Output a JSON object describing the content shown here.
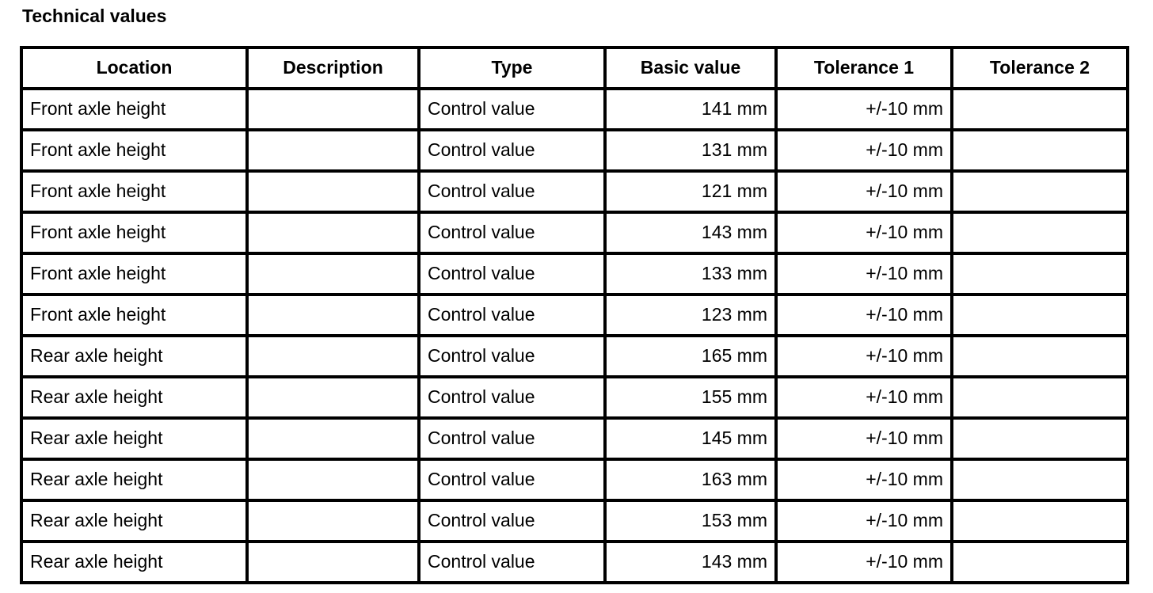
{
  "page": {
    "title": "Technical values"
  },
  "colors": {
    "background": "#ffffff",
    "text": "#000000",
    "table_border": "#000000"
  },
  "table": {
    "columns": [
      "location",
      "description",
      "type",
      "basic_value",
      "tolerance_1",
      "tolerance_2"
    ],
    "headers": [
      "Location",
      "Description",
      "Type",
      "Basic value",
      "Tolerance 1",
      "Tolerance 2"
    ],
    "rows": [
      {
        "location": "Front axle height",
        "description": "",
        "type": "Control value",
        "basic_value": "141 mm",
        "tolerance_1": "+/-10 mm",
        "tolerance_2": ""
      },
      {
        "location": "Front axle height",
        "description": "",
        "type": "Control value",
        "basic_value": "131 mm",
        "tolerance_1": "+/-10 mm",
        "tolerance_2": ""
      },
      {
        "location": "Front axle height",
        "description": "",
        "type": "Control value",
        "basic_value": "121 mm",
        "tolerance_1": "+/-10 mm",
        "tolerance_2": ""
      },
      {
        "location": "Front axle height",
        "description": "",
        "type": "Control value",
        "basic_value": "143 mm",
        "tolerance_1": "+/-10 mm",
        "tolerance_2": ""
      },
      {
        "location": "Front axle height",
        "description": "",
        "type": "Control value",
        "basic_value": "133 mm",
        "tolerance_1": "+/-10 mm",
        "tolerance_2": ""
      },
      {
        "location": "Front axle height",
        "description": "",
        "type": "Control value",
        "basic_value": "123 mm",
        "tolerance_1": "+/-10 mm",
        "tolerance_2": ""
      },
      {
        "location": "Rear axle height",
        "description": "",
        "type": "Control value",
        "basic_value": "165 mm",
        "tolerance_1": "+/-10 mm",
        "tolerance_2": ""
      },
      {
        "location": "Rear axle height",
        "description": "",
        "type": "Control value",
        "basic_value": "155 mm",
        "tolerance_1": "+/-10 mm",
        "tolerance_2": ""
      },
      {
        "location": "Rear axle height",
        "description": "",
        "type": "Control value",
        "basic_value": "145 mm",
        "tolerance_1": "+/-10 mm",
        "tolerance_2": ""
      },
      {
        "location": "Rear axle height",
        "description": "",
        "type": "Control value",
        "basic_value": "163 mm",
        "tolerance_1": "+/-10 mm",
        "tolerance_2": ""
      },
      {
        "location": "Rear axle height",
        "description": "",
        "type": "Control value",
        "basic_value": "153 mm",
        "tolerance_1": "+/-10 mm",
        "tolerance_2": ""
      },
      {
        "location": "Rear axle height",
        "description": "",
        "type": "Control value",
        "basic_value": "143 mm",
        "tolerance_1": "+/-10 mm",
        "tolerance_2": ""
      }
    ]
  }
}
